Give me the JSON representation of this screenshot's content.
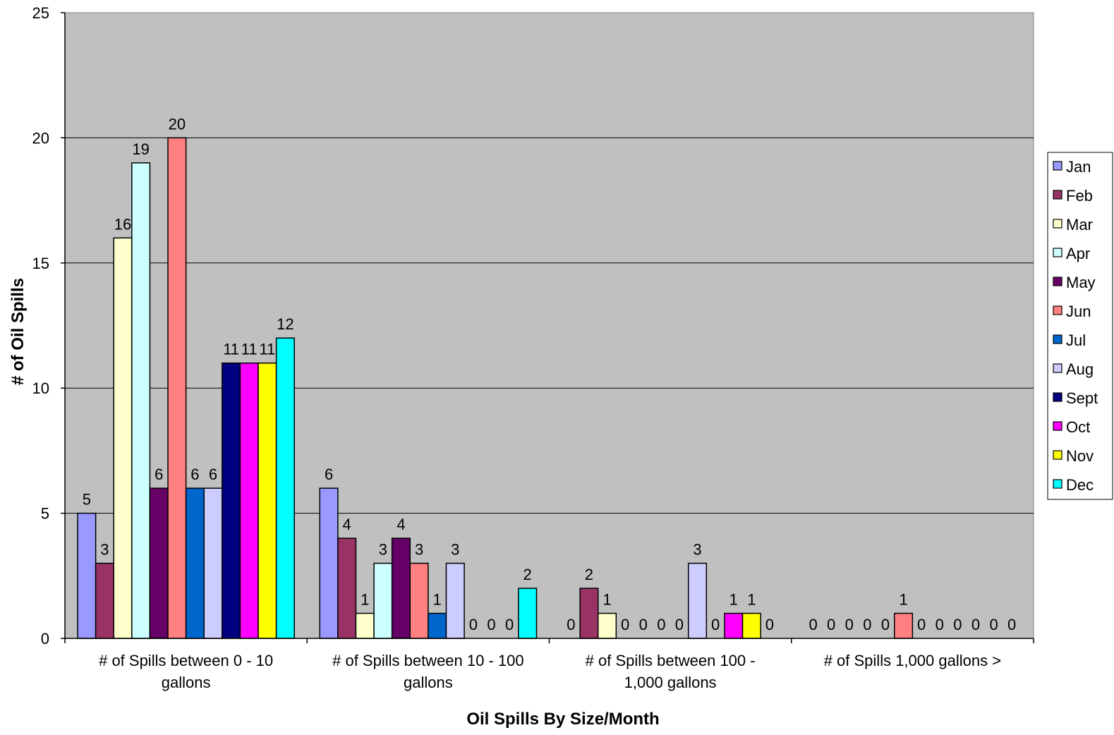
{
  "chart_data": {
    "type": "bar",
    "title": "",
    "xlabel": "Oil Spills By Size/Month",
    "ylabel": "# of Oil Spills",
    "ylim": [
      0,
      25
    ],
    "yticks": [
      0,
      5,
      10,
      15,
      20,
      25
    ],
    "grid": true,
    "legend_position": "right",
    "plot_background": "#c0c0c0",
    "categories": [
      [
        "# of Spills between 0 - 10",
        "gallons"
      ],
      [
        "# of Spills between 10 - 100",
        "gallons"
      ],
      [
        "# of Spills between 100 -",
        "1,000 gallons"
      ],
      [
        "# of Spills 1,000 gallons >"
      ]
    ],
    "series": [
      {
        "name": "Jan",
        "color": "#9999ff",
        "values": [
          5,
          6,
          0,
          0
        ]
      },
      {
        "name": "Feb",
        "color": "#993366",
        "values": [
          3,
          4,
          2,
          0
        ]
      },
      {
        "name": "Mar",
        "color": "#ffffcc",
        "values": [
          16,
          1,
          1,
          0
        ]
      },
      {
        "name": "Apr",
        "color": "#ccffff",
        "values": [
          19,
          3,
          0,
          0
        ]
      },
      {
        "name": "May",
        "color": "#660066",
        "values": [
          6,
          4,
          0,
          0
        ]
      },
      {
        "name": "Jun",
        "color": "#ff8080",
        "values": [
          20,
          3,
          0,
          1
        ]
      },
      {
        "name": "Jul",
        "color": "#0066cc",
        "values": [
          6,
          1,
          0,
          0
        ]
      },
      {
        "name": "Aug",
        "color": "#ccccff",
        "values": [
          6,
          3,
          3,
          0
        ]
      },
      {
        "name": "Sept",
        "color": "#000080",
        "values": [
          11,
          0,
          0,
          0
        ]
      },
      {
        "name": "Oct",
        "color": "#ff00ff",
        "values": [
          11,
          0,
          1,
          0
        ]
      },
      {
        "name": "Nov",
        "color": "#ffff00",
        "values": [
          11,
          0,
          1,
          0
        ]
      },
      {
        "name": "Dec",
        "color": "#00ffff",
        "values": [
          12,
          2,
          0,
          0
        ]
      }
    ]
  }
}
